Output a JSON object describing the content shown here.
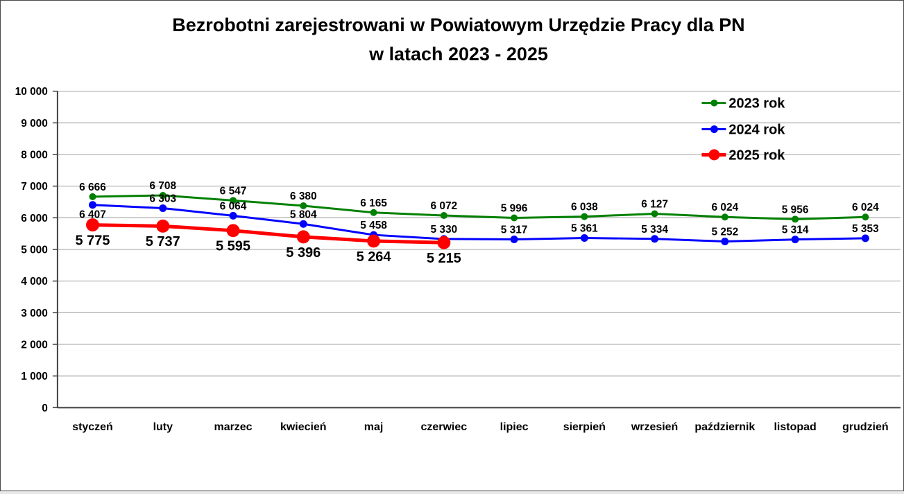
{
  "chart_data": {
    "type": "line",
    "title_line1": "Bezrobotni zarejestrowani w Powiatowym Urzędzie Pracy dla PN",
    "title_line2": "w latach 2023 - 2025",
    "categories": [
      "styczeń",
      "luty",
      "marzec",
      "kwiecień",
      "maj",
      "czerwiec",
      "lipiec",
      "sierpień",
      "wrzesień",
      "październik",
      "listopad",
      "grudzień"
    ],
    "series": [
      {
        "name": "2023 rok",
        "color": "#008000",
        "values": [
          6666,
          6708,
          6547,
          6380,
          6165,
          6072,
          5996,
          6038,
          6127,
          6024,
          5956,
          6024
        ],
        "label_position": "above",
        "label_size": "small",
        "marker_radius": 5,
        "line_width": 3,
        "label_exceptions": {}
      },
      {
        "name": "2024 rok",
        "color": "#0000ff",
        "values": [
          6407,
          6303,
          6064,
          5804,
          5458,
          5330,
          5317,
          5361,
          5334,
          5252,
          5314,
          5353
        ],
        "label_position": "above",
        "label_size": "small",
        "marker_radius": 5.5,
        "line_width": 3,
        "label_exceptions": {
          "0": "below"
        }
      },
      {
        "name": "2025 rok",
        "color": "#ff0000",
        "values": [
          5775,
          5737,
          5595,
          5396,
          5264,
          5215
        ],
        "label_position": "below",
        "label_size": "large",
        "marker_radius": 9.5,
        "line_width": 5,
        "label_exceptions": {}
      }
    ],
    "y_axis": {
      "min": 0,
      "max": 10000,
      "step": 1000,
      "thousands_separator": "space"
    },
    "grid": true,
    "legend_position": "top-right"
  },
  "colors": {
    "background": "#ffffff",
    "gridline": "#b3b3b3",
    "axis": "#404040",
    "title": "#000000"
  }
}
